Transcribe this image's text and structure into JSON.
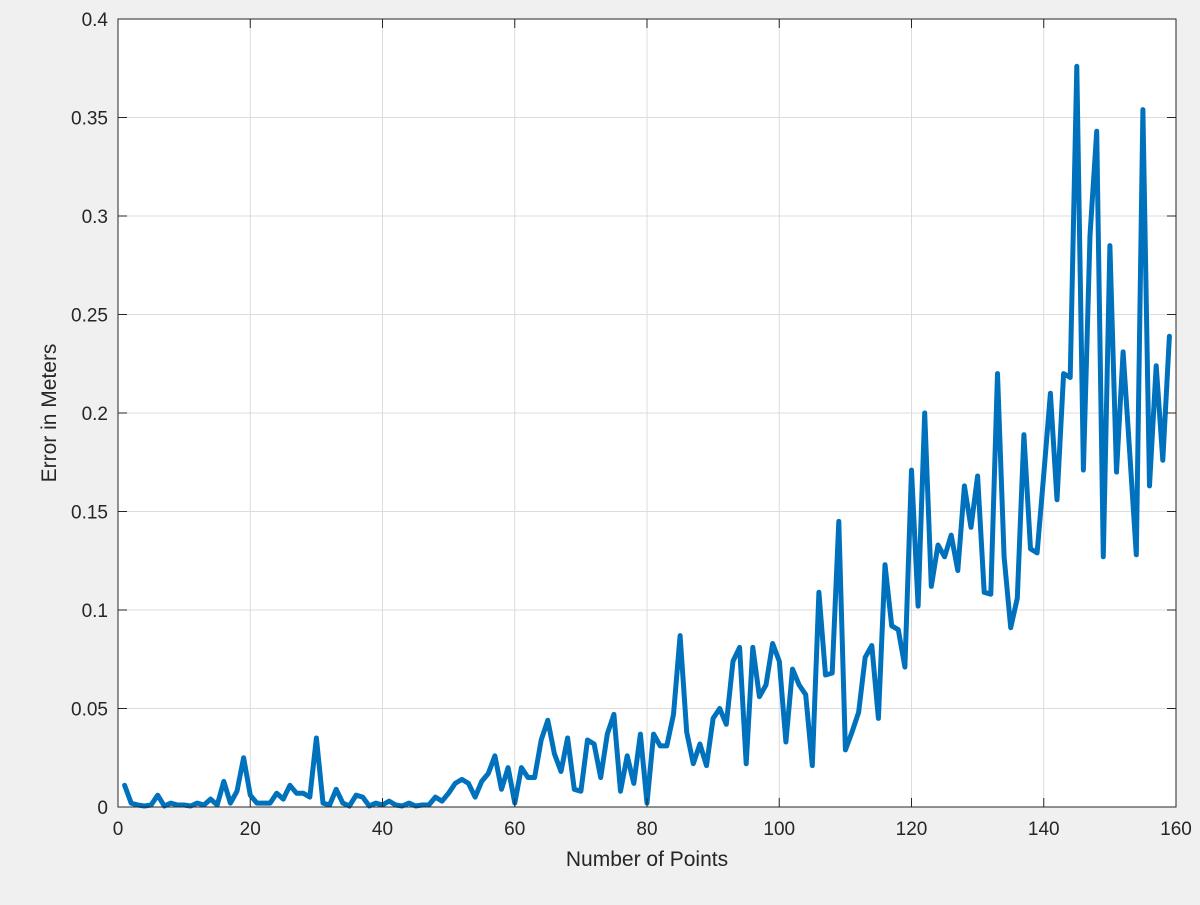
{
  "chart_data": {
    "type": "line",
    "title": "",
    "xlabel": "Number of Points",
    "ylabel": "Error in Meters",
    "xlim": [
      0,
      160
    ],
    "ylim": [
      0,
      0.4
    ],
    "grid": true,
    "x_ticks": [
      0,
      20,
      40,
      60,
      80,
      100,
      120,
      140,
      160
    ],
    "x_tick_labels": [
      "0",
      "20",
      "40",
      "60",
      "80",
      "100",
      "120",
      "140",
      "160"
    ],
    "y_ticks": [
      0,
      0.05,
      0.1,
      0.15,
      0.2,
      0.25,
      0.3,
      0.35,
      0.4
    ],
    "y_tick_labels": [
      "0",
      "0.05",
      "0.1",
      "0.15",
      "0.2",
      "0.25",
      "0.3",
      "0.35",
      "0.4"
    ],
    "line_color": "#0072bd",
    "series": [
      {
        "x": [
          1,
          2,
          3,
          4,
          5,
          6,
          7,
          8,
          9,
          10,
          11,
          12,
          13,
          14,
          15,
          16,
          17,
          18,
          19,
          20,
          21,
          22,
          23,
          24,
          25,
          26,
          27,
          28,
          29,
          30,
          31,
          32,
          33,
          34,
          35,
          36,
          37,
          38,
          39,
          40,
          41,
          42,
          43,
          44,
          45,
          46,
          47,
          48,
          49,
          50,
          51,
          52,
          53,
          54,
          55,
          56,
          57,
          58,
          59,
          60,
          61,
          62,
          63,
          64,
          65,
          66,
          67,
          68,
          69,
          70,
          71,
          72,
          73,
          74,
          75,
          76,
          77,
          78,
          79,
          80,
          81,
          82,
          83,
          84,
          85,
          86,
          87,
          88,
          89,
          90,
          91,
          92,
          93,
          94,
          95,
          96,
          97,
          98,
          99,
          100,
          101,
          102,
          103,
          104,
          105,
          106,
          107,
          108,
          109,
          110,
          111,
          112,
          113,
          114,
          115,
          116,
          117,
          118,
          119,
          120,
          121,
          122,
          123,
          124,
          125,
          126,
          127,
          128,
          129,
          130,
          131,
          132,
          133,
          134,
          135,
          136,
          137,
          138,
          139,
          140,
          141,
          142,
          143,
          144,
          145,
          146,
          147,
          148,
          149,
          150,
          151,
          152,
          153,
          154,
          155,
          156,
          157,
          158,
          159
        ],
        "y": [
          0.011,
          0.002,
          0.001,
          0.0005,
          0.001,
          0.006,
          0.0005,
          0.002,
          0.001,
          0.001,
          0.0005,
          0.002,
          0.001,
          0.004,
          0.001,
          0.013,
          0.002,
          0.008,
          0.025,
          0.006,
          0.002,
          0.002,
          0.002,
          0.007,
          0.004,
          0.011,
          0.007,
          0.007,
          0.005,
          0.035,
          0.002,
          0.001,
          0.009,
          0.002,
          0.0005,
          0.006,
          0.005,
          0.0005,
          0.002,
          0.001,
          0.003,
          0.001,
          0.0005,
          0.002,
          0.0005,
          0.001,
          0.001,
          0.005,
          0.003,
          0.007,
          0.012,
          0.014,
          0.012,
          0.005,
          0.013,
          0.017,
          0.026,
          0.009,
          0.02,
          0.002,
          0.02,
          0.015,
          0.015,
          0.034,
          0.044,
          0.027,
          0.018,
          0.035,
          0.009,
          0.008,
          0.034,
          0.032,
          0.015,
          0.037,
          0.047,
          0.008,
          0.026,
          0.012,
          0.037,
          0.002,
          0.037,
          0.031,
          0.031,
          0.047,
          0.087,
          0.038,
          0.022,
          0.032,
          0.021,
          0.045,
          0.05,
          0.042,
          0.074,
          0.081,
          0.022,
          0.081,
          0.056,
          0.062,
          0.083,
          0.074,
          0.033,
          0.07,
          0.062,
          0.057,
          0.021,
          0.109,
          0.067,
          0.068,
          0.145,
          0.029,
          0.038,
          0.048,
          0.076,
          0.082,
          0.045,
          0.123,
          0.092,
          0.09,
          0.071,
          0.171,
          0.102,
          0.2,
          0.112,
          0.133,
          0.127,
          0.138,
          0.12,
          0.163,
          0.142,
          0.168,
          0.109,
          0.108,
          0.22,
          0.127,
          0.091,
          0.106,
          0.189,
          0.131,
          0.129,
          0.169,
          0.21,
          0.156,
          0.22,
          0.218,
          0.376,
          0.171,
          0.29,
          0.343,
          0.127,
          0.285,
          0.17,
          0.231,
          0.18,
          0.128,
          0.354,
          0.163,
          0.224,
          0.176,
          0.239
        ]
      }
    ]
  }
}
